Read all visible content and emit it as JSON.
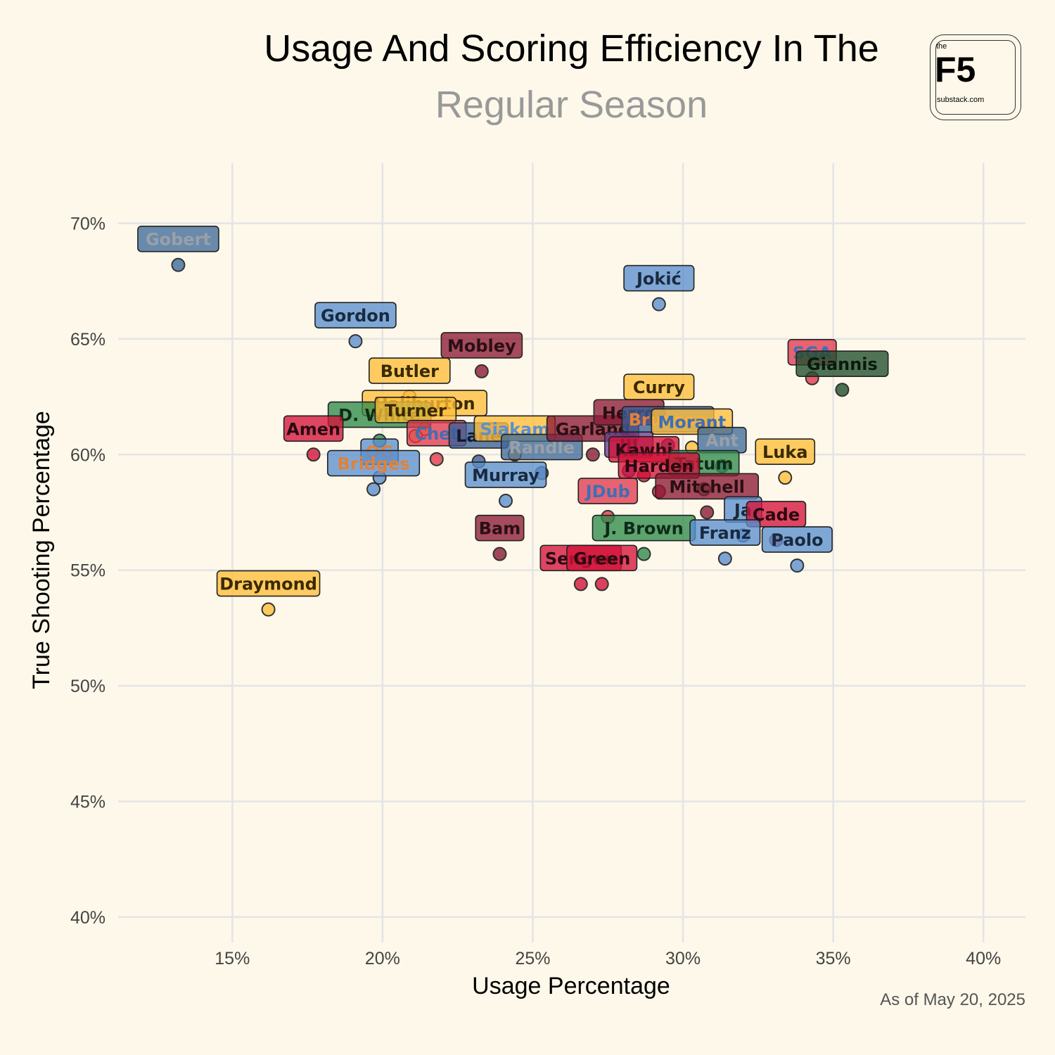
{
  "header": {
    "title": "Usage And Scoring Efficiency In The",
    "subtitle": "Regular Season"
  },
  "logo": {
    "the": "the",
    "mark": "F5",
    "domain": ".substack.com"
  },
  "footnote": "As of May 20, 2025",
  "colors": {
    "background": "#fdf8ea",
    "grid": "#e4e4e4",
    "blue": "#5b8fd0",
    "slate": "#3f6a99",
    "navy": "#3a5e97",
    "red": "#e0394e",
    "crimson": "#d3123a",
    "maroon": "#8b1a35",
    "gold": "#ffbe3a",
    "green": "#2f8a4a",
    "darkgreen": "#1f4d2c",
    "purple": "#6a3d8f"
  },
  "chart_data": {
    "type": "scatter",
    "title": "Usage And Scoring Efficiency In The Regular Season",
    "xlabel": "Usage Percentage",
    "ylabel": "True Shooting Percentage",
    "xlim": [
      11.2,
      41.4
    ],
    "ylim": [
      38.9,
      72.6
    ],
    "x_ticks": [
      15,
      20,
      25,
      30,
      35,
      40
    ],
    "x_tick_labels": [
      "15%",
      "20%",
      "25%",
      "30%",
      "35%",
      "40%"
    ],
    "y_ticks": [
      40,
      45,
      50,
      55,
      60,
      65,
      70
    ],
    "y_tick_labels": [
      "40%",
      "45%",
      "50%",
      "55%",
      "60%",
      "65%",
      "70%"
    ],
    "grid": true,
    "points": [
      {
        "label": "Gobert",
        "x": 13.2,
        "y": 68.2,
        "fill": "slate",
        "text": "#9aa0a8"
      },
      {
        "label": "Gordon",
        "x": 19.1,
        "y": 64.9,
        "fill": "blue",
        "text": "#1a2a3e"
      },
      {
        "label": "Mobley",
        "x": 23.3,
        "y": 63.6,
        "fill": "maroon",
        "text": "#2a0f14"
      },
      {
        "label": "Butler",
        "x": 20.9,
        "y": 62.5,
        "fill": "gold",
        "text": "#3a2a00"
      },
      {
        "label": "Haliburton",
        "x": 21.4,
        "y": 61.1,
        "fill": "gold",
        "text": "#3a2a00"
      },
      {
        "label": "D. White",
        "x": 19.9,
        "y": 60.6,
        "fill": "green",
        "text": "#0f2a17"
      },
      {
        "label": "Turner",
        "x": 21.1,
        "y": 60.8,
        "fill": "gold",
        "text": "#3a2a00"
      },
      {
        "label": "Amen",
        "x": 17.7,
        "y": 60.0,
        "fill": "crimson",
        "text": "#2a0a10"
      },
      {
        "label": "Chet",
        "x": 21.8,
        "y": 59.8,
        "fill": "red",
        "text": "#3f6fb5"
      },
      {
        "label": "Lane",
        "x": 23.2,
        "y": 59.7,
        "fill": "navy",
        "text": "#101a2c"
      },
      {
        "label": "OG",
        "x": 19.9,
        "y": 59.0,
        "fill": "blue",
        "text": "#e0823a"
      },
      {
        "label": "Bridges",
        "x": 19.7,
        "y": 58.5,
        "fill": "blue",
        "text": "#e0823a"
      },
      {
        "label": "Siakam",
        "x": 24.4,
        "y": 60.0,
        "fill": "gold",
        "text": "#5b8fd0"
      },
      {
        "label": "Randle",
        "x": 25.3,
        "y": 59.2,
        "fill": "slate",
        "text": "#9aa0a8"
      },
      {
        "label": "Garland",
        "x": 27.0,
        "y": 60.0,
        "fill": "maroon",
        "text": "#2a0f14"
      },
      {
        "label": "Murray",
        "x": 24.1,
        "y": 58.0,
        "fill": "blue",
        "text": "#1a2a3e"
      },
      {
        "label": "Jokić",
        "x": 29.2,
        "y": 66.5,
        "fill": "blue",
        "text": "#1a2a3e"
      },
      {
        "label": "Curry",
        "x": 29.2,
        "y": 61.8,
        "fill": "gold",
        "text": "#3a2a00"
      },
      {
        "label": "Herro",
        "x": 28.2,
        "y": 60.7,
        "fill": "maroon",
        "text": "#2a0f14"
      },
      {
        "label": "Brunson",
        "x": 29.5,
        "y": 60.4,
        "fill": "navy",
        "text": "#e0823a"
      },
      {
        "label": "Morant",
        "x": 30.3,
        "y": 60.3,
        "fill": "gold",
        "text": "#3f6fb5"
      },
      {
        "label": "Ant",
        "x": 31.3,
        "y": 59.5,
        "fill": "slate",
        "text": "#9aa0a8"
      },
      {
        "label": "JJJ",
        "x": 28.2,
        "y": 59.3,
        "fill": "purple",
        "text": "#1a0f24"
      },
      {
        "label": "Kawhi",
        "x": 28.7,
        "y": 59.1,
        "fill": "crimson",
        "text": "#2a0a10"
      },
      {
        "label": "Tatum",
        "x": 30.7,
        "y": 58.5,
        "fill": "green",
        "text": "#0f2a17"
      },
      {
        "label": "Harden",
        "x": 29.2,
        "y": 58.4,
        "fill": "crimson",
        "text": "#2a0a10"
      },
      {
        "label": "Mitchell",
        "x": 30.8,
        "y": 57.5,
        "fill": "maroon",
        "text": "#2a0f14"
      },
      {
        "label": "JDub",
        "x": 27.5,
        "y": 57.3,
        "fill": "red",
        "text": "#3f6fb5"
      },
      {
        "label": "Ja",
        "x": 32.0,
        "y": 56.5,
        "fill": "blue",
        "text": "#1a2a3e"
      },
      {
        "label": "Cade",
        "x": 33.1,
        "y": 56.3,
        "fill": "crimson",
        "text": "#2a0a10"
      },
      {
        "label": "J. Brown",
        "x": 28.7,
        "y": 55.7,
        "fill": "green",
        "text": "#0f2a17"
      },
      {
        "label": "Franz",
        "x": 31.4,
        "y": 55.5,
        "fill": "blue",
        "text": "#1a2a3e"
      },
      {
        "label": "Paolo",
        "x": 33.8,
        "y": 55.2,
        "fill": "blue",
        "text": "#1a2a3e"
      },
      {
        "label": "Bam",
        "x": 23.9,
        "y": 55.7,
        "fill": "maroon",
        "text": "#2a0f14"
      },
      {
        "label": "Sengun",
        "x": 26.6,
        "y": 54.4,
        "fill": "crimson",
        "text": "#2a0a10"
      },
      {
        "label": "Green",
        "x": 27.3,
        "y": 54.4,
        "fill": "crimson",
        "text": "#2a0a10"
      },
      {
        "label": "SGA",
        "x": 34.3,
        "y": 63.3,
        "fill": "red",
        "text": "#3f6fb5"
      },
      {
        "label": "Giannis",
        "x": 35.3,
        "y": 62.8,
        "fill": "darkgreen",
        "text": "#0a1a0e"
      },
      {
        "label": "Luka",
        "x": 33.4,
        "y": 59.0,
        "fill": "gold",
        "text": "#3a2a00"
      },
      {
        "label": "Draymond",
        "x": 16.2,
        "y": 53.3,
        "fill": "gold",
        "text": "#3a2a00"
      }
    ]
  }
}
